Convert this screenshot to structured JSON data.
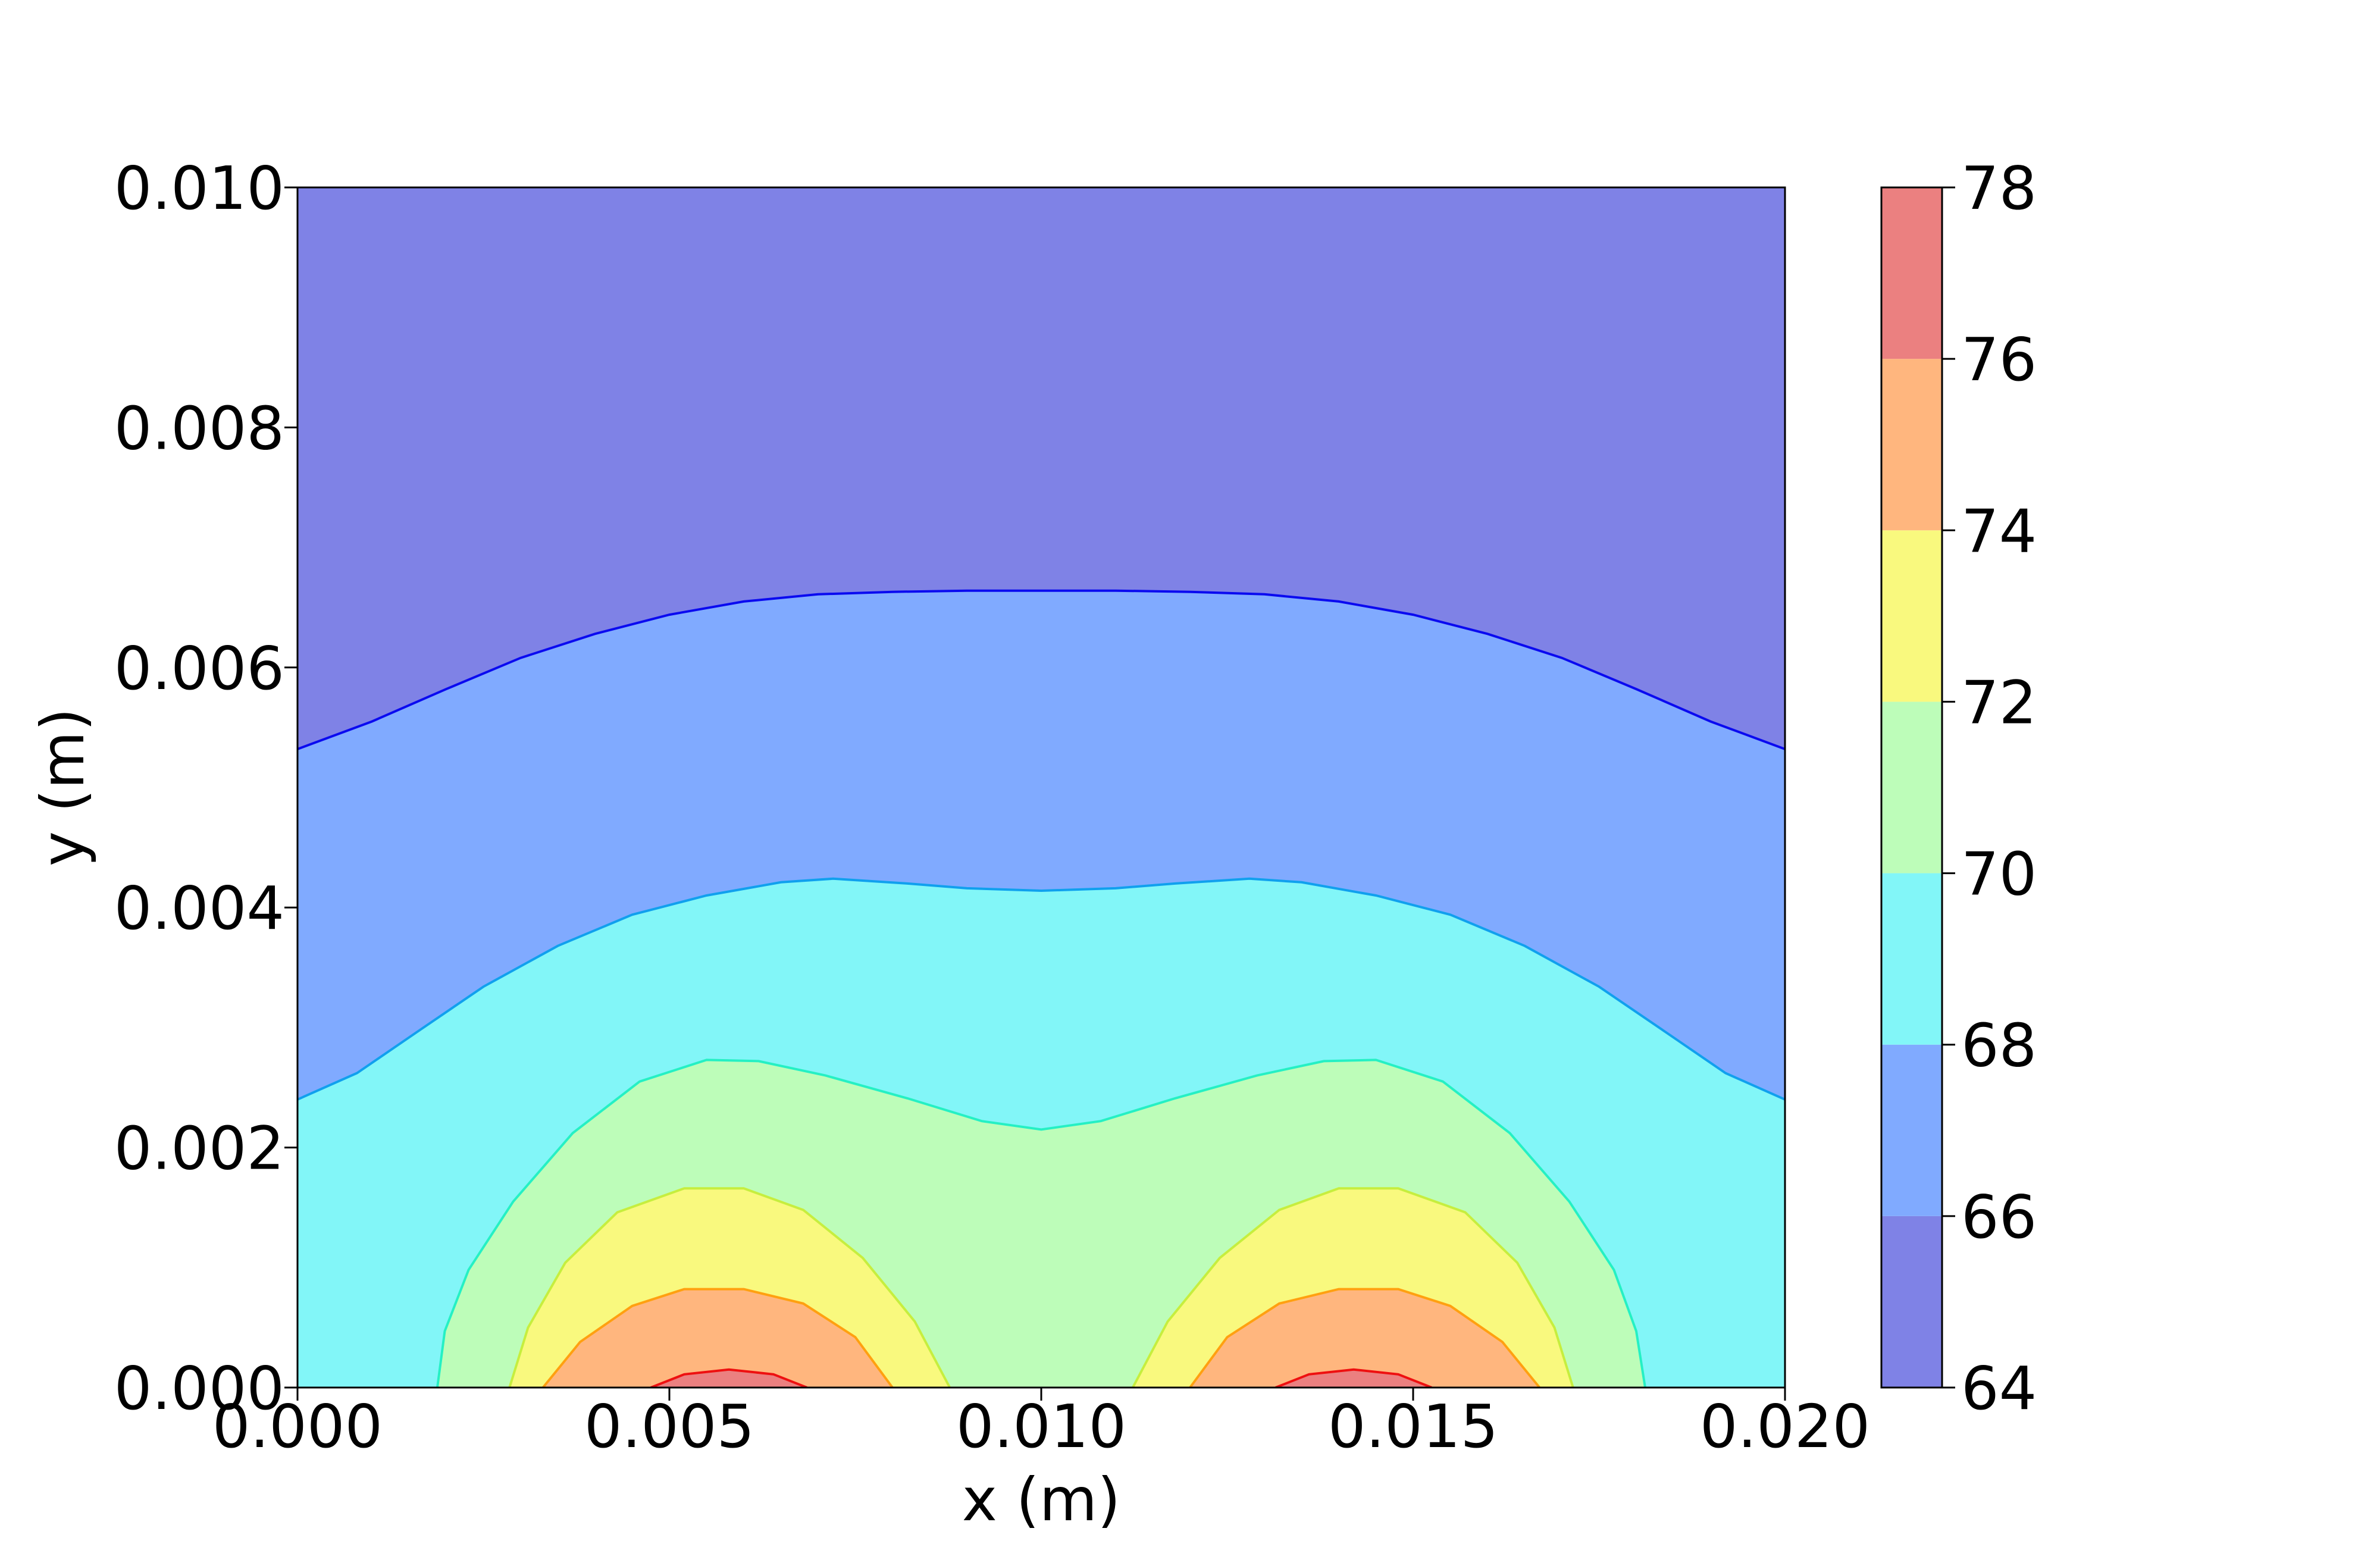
{
  "chart_data": {
    "type": "contourf",
    "xlabel": "x (m)",
    "ylabel": "y (m)",
    "xlim": [
      0.0,
      0.02
    ],
    "ylim": [
      0.0,
      0.01
    ],
    "x_ticks": [
      "0.000",
      "0.005",
      "0.010",
      "0.015",
      "0.020"
    ],
    "y_ticks": [
      "0.000",
      "0.002",
      "0.004",
      "0.006",
      "0.008",
      "0.010"
    ],
    "grid": false,
    "colormap": "jet",
    "alpha": 0.5,
    "colorbar": {
      "levels": [
        64,
        66,
        68,
        70,
        72,
        74,
        76,
        78
      ],
      "tick_labels": [
        "64",
        "66",
        "68",
        "70",
        "72",
        "74",
        "76",
        "78"
      ],
      "band_colors": [
        "#7f82e6",
        "#80aaff",
        "#82f6f8",
        "#bdfdb9",
        "#f9f97e",
        "#ffb67e",
        "#eb8080"
      ],
      "placement": "right"
    },
    "heat_sources": [
      {
        "x": 0.0058,
        "y": 0.0
      },
      {
        "x": 0.0142,
        "y": 0.0
      }
    ],
    "contours": [
      {
        "level": 66,
        "line_color": "#0a0af0",
        "points": [
          [
            0.0,
            0.00532
          ],
          [
            0.001,
            0.00555
          ],
          [
            0.002,
            0.00582
          ],
          [
            0.003,
            0.00608
          ],
          [
            0.004,
            0.00628
          ],
          [
            0.005,
            0.00644
          ],
          [
            0.006,
            0.00655
          ],
          [
            0.007,
            0.00661
          ],
          [
            0.008,
            0.00663
          ],
          [
            0.009,
            0.00664
          ],
          [
            0.01,
            0.00664
          ],
          [
            0.011,
            0.00664
          ],
          [
            0.012,
            0.00663
          ],
          [
            0.013,
            0.00661
          ],
          [
            0.014,
            0.00655
          ],
          [
            0.015,
            0.00644
          ],
          [
            0.016,
            0.00628
          ],
          [
            0.017,
            0.00608
          ],
          [
            0.018,
            0.00582
          ],
          [
            0.019,
            0.00555
          ],
          [
            0.02,
            0.00532
          ]
        ]
      },
      {
        "level": 68,
        "line_color": "#10a0ee",
        "points": [
          [
            0.0,
            0.0024
          ],
          [
            0.0008,
            0.00262
          ],
          [
            0.0016,
            0.00296
          ],
          [
            0.0025,
            0.00334
          ],
          [
            0.0035,
            0.00368
          ],
          [
            0.0045,
            0.00394
          ],
          [
            0.0055,
            0.0041
          ],
          [
            0.0065,
            0.00421
          ],
          [
            0.0072,
            0.00424
          ],
          [
            0.0082,
            0.0042
          ],
          [
            0.009,
            0.00416
          ],
          [
            0.01,
            0.00414
          ],
          [
            0.011,
            0.00416
          ],
          [
            0.0118,
            0.0042
          ],
          [
            0.0128,
            0.00424
          ],
          [
            0.0135,
            0.00421
          ],
          [
            0.0145,
            0.0041
          ],
          [
            0.0155,
            0.00394
          ],
          [
            0.0165,
            0.00368
          ],
          [
            0.0175,
            0.00334
          ],
          [
            0.0184,
            0.00296
          ],
          [
            0.0192,
            0.00262
          ],
          [
            0.02,
            0.0024
          ]
        ]
      },
      {
        "level": 70,
        "line_color": "#25f0c4",
        "points": [
          [
            0.00188,
            0.0
          ],
          [
            0.00198,
            0.00047
          ],
          [
            0.0023,
            0.00098
          ],
          [
            0.0029,
            0.00155
          ],
          [
            0.0037,
            0.00212
          ],
          [
            0.0046,
            0.00255
          ],
          [
            0.0055,
            0.00273
          ],
          [
            0.0062,
            0.00272
          ],
          [
            0.0071,
            0.0026
          ],
          [
            0.0082,
            0.00241
          ],
          [
            0.0092,
            0.00222
          ],
          [
            0.01,
            0.00215
          ],
          [
            0.0108,
            0.00222
          ],
          [
            0.0118,
            0.00241
          ],
          [
            0.0129,
            0.0026
          ],
          [
            0.0138,
            0.00272
          ],
          [
            0.0145,
            0.00273
          ],
          [
            0.0154,
            0.00255
          ],
          [
            0.0163,
            0.00212
          ],
          [
            0.0171,
            0.00155
          ],
          [
            0.0177,
            0.00098
          ],
          [
            0.018,
            0.00047
          ],
          [
            0.01812,
            0.0
          ]
        ]
      },
      {
        "level": 72,
        "line_color": "#c6ee3e",
        "points": [
          [
            0.00285,
            0.0
          ],
          [
            0.0031,
            0.0005
          ],
          [
            0.0036,
            0.00104
          ],
          [
            0.0043,
            0.00146
          ],
          [
            0.0052,
            0.00166
          ],
          [
            0.006,
            0.00166
          ],
          [
            0.0068,
            0.00148
          ],
          [
            0.0076,
            0.00108
          ],
          [
            0.0083,
            0.00055
          ],
          [
            0.00877,
            0.0
          ]
        ]
      },
      {
        "level": 72,
        "line_color": "#c6ee3e",
        "points": [
          [
            0.01123,
            0.0
          ],
          [
            0.0117,
            0.00055
          ],
          [
            0.0124,
            0.00108
          ],
          [
            0.0132,
            0.00148
          ],
          [
            0.014,
            0.00166
          ],
          [
            0.0148,
            0.00166
          ],
          [
            0.0157,
            0.00146
          ],
          [
            0.0164,
            0.00104
          ],
          [
            0.0169,
            0.0005
          ],
          [
            0.01715,
            0.0
          ]
        ]
      },
      {
        "level": 74,
        "line_color": "#ffa010",
        "points": [
          [
            0.0033,
            0.0
          ],
          [
            0.0038,
            0.00038
          ],
          [
            0.0045,
            0.00068
          ],
          [
            0.0052,
            0.00082
          ],
          [
            0.006,
            0.00082
          ],
          [
            0.0068,
            0.0007
          ],
          [
            0.0075,
            0.00042
          ],
          [
            0.008,
            0.0
          ]
        ]
      },
      {
        "level": 74,
        "line_color": "#ffa010",
        "points": [
          [
            0.012,
            0.0
          ],
          [
            0.0125,
            0.00042
          ],
          [
            0.0132,
            0.0007
          ],
          [
            0.014,
            0.00082
          ],
          [
            0.0148,
            0.00082
          ],
          [
            0.0155,
            0.00068
          ],
          [
            0.0162,
            0.00038
          ],
          [
            0.0167,
            0.0
          ]
        ]
      },
      {
        "level": 76,
        "line_color": "#ee1010",
        "points": [
          [
            0.00475,
            0.0
          ],
          [
            0.0052,
            0.00011
          ],
          [
            0.0058,
            0.00015
          ],
          [
            0.0064,
            0.00011
          ],
          [
            0.00685,
            0.0
          ]
        ]
      },
      {
        "level": 76,
        "line_color": "#ee1010",
        "points": [
          [
            0.01315,
            0.0
          ],
          [
            0.0136,
            0.00011
          ],
          [
            0.0142,
            0.00015
          ],
          [
            0.0148,
            0.00011
          ],
          [
            0.01525,
            0.0
          ]
        ]
      }
    ]
  }
}
